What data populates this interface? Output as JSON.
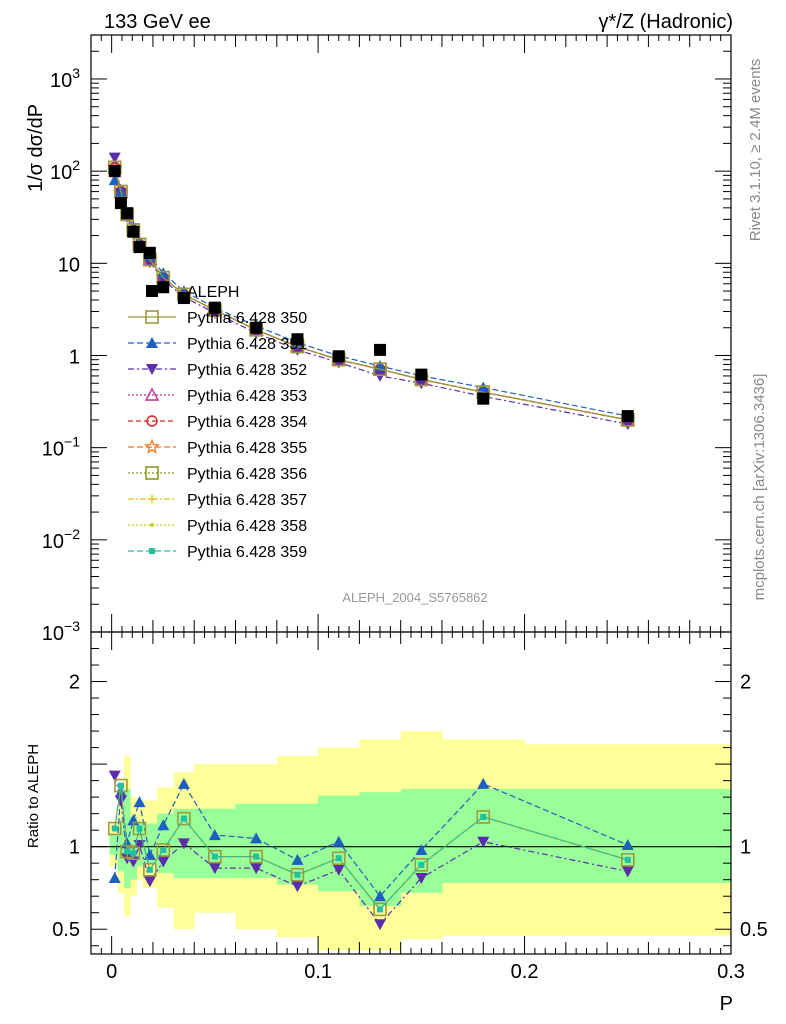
{
  "header": {
    "left": "133 GeV ee",
    "right": "γ*/Z (Hadronic)"
  },
  "side_labels": {
    "rivet": "Rivet 3.1.10, ≥ 2.4M events",
    "mcplots": "mcplots.cern.ch [arXiv:1306.3436]"
  },
  "analysis_label": "ALEPH_2004_S5765862",
  "colors": {
    "data": "#000000",
    "band_inner": "#99ff99",
    "band_outer": "#ffff99",
    "ratio_line": "#000000"
  },
  "chart_data": [
    {
      "type": "scatter",
      "title": "",
      "ylabel": "1/σ  dσ/dP",
      "xlabel": "",
      "yscale": "log",
      "ylim": [
        0.001,
        3000
      ],
      "xlim": [
        -0.01,
        0.3
      ],
      "grid": false,
      "legend_position": "left",
      "x": [
        0.0015,
        0.0045,
        0.0075,
        0.0105,
        0.0135,
        0.0185,
        0.025,
        0.035,
        0.05,
        0.07,
        0.09,
        0.11,
        0.13,
        0.15,
        0.18,
        0.25
      ],
      "yticks": [
        {
          "label": "10^3",
          "v": 1000
        },
        {
          "label": "10^2",
          "v": 100
        },
        {
          "label": "10",
          "v": 10
        },
        {
          "label": "1",
          "v": 1
        },
        {
          "label": "10^-1",
          "v": 0.1
        },
        {
          "label": "10^-2",
          "v": 0.01
        },
        {
          "label": "10^-3",
          "v": 0.001
        }
      ],
      "series": [
        {
          "name": "ALEPH",
          "color": "#000000",
          "marker": "square-filled",
          "dash": "none",
          "values": [
            100,
            45,
            35,
            22,
            15,
            13,
            5.5,
            4.2,
            3.3,
            2.0,
            1.5,
            0.98,
            1.15,
            0.62,
            0.34,
            0.22
          ]
        },
        {
          "name": "Pythia 6.428 350",
          "color": "#a09a3a",
          "marker": "square-open",
          "dash": "solid",
          "values": [
            110,
            60,
            34,
            23,
            16,
            11,
            7.0,
            4.6,
            3.1,
            1.9,
            1.25,
            0.9,
            0.71,
            0.55,
            0.4,
            0.2
          ]
        },
        {
          "name": "Pythia 6.428 351",
          "color": "#1f5fbf",
          "marker": "triangle-up-filled",
          "dash": "6,3",
          "values": [
            80,
            60,
            35,
            25,
            17,
            12,
            7.8,
            5.0,
            3.3,
            2.1,
            1.38,
            0.99,
            0.77,
            0.6,
            0.45,
            0.22
          ]
        },
        {
          "name": "Pythia 6.428 352",
          "color": "#5b2da8",
          "marker": "triangle-down-filled",
          "dash": "6,3,2,3",
          "values": [
            140,
            58,
            32,
            22,
            15,
            10.3,
            6.6,
            4.3,
            2.9,
            1.75,
            1.15,
            0.84,
            0.6,
            0.5,
            0.36,
            0.18
          ]
        },
        {
          "name": "Pythia 6.428 353",
          "color": "#c03090",
          "marker": "triangle-up-open",
          "dash": "2,2",
          "values": [
            110,
            60,
            34,
            23,
            16,
            11,
            7.0,
            4.6,
            3.1,
            1.9,
            1.25,
            0.9,
            0.71,
            0.55,
            0.4,
            0.2
          ]
        },
        {
          "name": "Pythia 6.428 354",
          "color": "#e02020",
          "marker": "circle-open",
          "dash": "5,3",
          "values": [
            110,
            60,
            34,
            23,
            16,
            11,
            7.0,
            4.6,
            3.1,
            1.9,
            1.25,
            0.9,
            0.71,
            0.55,
            0.4,
            0.2
          ]
        },
        {
          "name": "Pythia 6.428 355",
          "color": "#f07820",
          "marker": "star-open",
          "dash": "6,3",
          "values": [
            110,
            60,
            34,
            23,
            16,
            11,
            7.0,
            4.6,
            3.1,
            1.9,
            1.25,
            0.9,
            0.71,
            0.55,
            0.4,
            0.2
          ]
        },
        {
          "name": "Pythia 6.428 356",
          "color": "#8a9a20",
          "marker": "square-open",
          "dash": "2,2",
          "values": [
            110,
            60,
            34,
            23,
            16,
            11,
            7.0,
            4.6,
            3.1,
            1.9,
            1.25,
            0.9,
            0.71,
            0.55,
            0.4,
            0.2
          ]
        },
        {
          "name": "Pythia 6.428 357",
          "color": "#e6c020",
          "marker": "plus",
          "dash": "6,2,2,2",
          "values": [
            110,
            60,
            34,
            23,
            16,
            11,
            7.0,
            4.6,
            3.1,
            1.9,
            1.25,
            0.9,
            0.71,
            0.55,
            0.4,
            0.2
          ]
        },
        {
          "name": "Pythia 6.428 358",
          "color": "#c8d020",
          "marker": "dot",
          "dash": "2,2",
          "values": [
            110,
            60,
            34,
            23,
            16,
            11,
            7.0,
            4.6,
            3.1,
            1.9,
            1.25,
            0.9,
            0.71,
            0.55,
            0.4,
            0.2
          ]
        },
        {
          "name": "Pythia 6.428 359",
          "color": "#20c0a0",
          "marker": "square-small-filled",
          "dash": "6,3",
          "values": [
            110,
            60,
            34,
            23,
            16,
            11,
            7.0,
            4.6,
            3.1,
            1.9,
            1.25,
            0.9,
            0.71,
            0.55,
            0.4,
            0.2
          ]
        }
      ]
    },
    {
      "type": "scatter",
      "title": "",
      "ylabel": "Ratio to ALEPH",
      "xlabel": "P",
      "ylim": [
        0.35,
        2.3
      ],
      "xlim": [
        -0.01,
        0.3
      ],
      "grid": false,
      "reference_line": 1,
      "yticks": [
        {
          "label": "0.5",
          "v": 0.5
        },
        {
          "label": "1",
          "v": 1
        },
        {
          "label": "2",
          "v": 2
        }
      ],
      "xticks": [
        {
          "label": "0",
          "v": 0
        },
        {
          "label": "0.1",
          "v": 0.1
        },
        {
          "label": "0.2",
          "v": 0.2
        },
        {
          "label": "0.3",
          "v": 0.3
        }
      ],
      "bands": {
        "edges": [
          -0.001,
          0.003,
          0.006,
          0.009,
          0.012,
          0.015,
          0.022,
          0.03,
          0.04,
          0.06,
          0.08,
          0.1,
          0.12,
          0.14,
          0.16,
          0.2,
          0.3
        ],
        "inner_low": [
          0.95,
          0.85,
          0.75,
          0.8,
          0.88,
          0.9,
          0.84,
          0.81,
          0.81,
          0.81,
          0.77,
          0.73,
          0.64,
          0.72,
          0.78,
          0.78
        ],
        "inner_high": [
          1.07,
          1.17,
          1.35,
          1.18,
          1.14,
          1.14,
          1.2,
          1.23,
          1.23,
          1.26,
          1.26,
          1.31,
          1.33,
          1.35,
          1.35,
          1.35
        ],
        "outer_low": [
          0.88,
          0.72,
          0.58,
          0.7,
          0.8,
          0.75,
          0.63,
          0.5,
          0.6,
          0.5,
          0.45,
          0.37,
          0.37,
          0.44,
          0.46,
          0.46
        ],
        "outer_high": [
          1.15,
          1.3,
          1.55,
          1.3,
          1.25,
          1.28,
          1.36,
          1.45,
          1.5,
          1.5,
          1.55,
          1.6,
          1.65,
          1.7,
          1.65,
          1.62
        ]
      },
      "series": [
        {
          "name": "Pythia 6.428 351",
          "color": "#1f5fbf",
          "marker": "triangle-up-filled",
          "dash": "6,3",
          "values": [
            0.81,
            1.33,
            1.02,
            1.16,
            1.27,
            0.95,
            1.13,
            1.38,
            1.07,
            1.05,
            0.92,
            1.03,
            0.7,
            0.98,
            1.38,
            1.01
          ]
        },
        {
          "name": "Pythia 6.428 352",
          "color": "#5b2da8",
          "marker": "triangle-down-filled",
          "dash": "6,3,2,3",
          "values": [
            1.43,
            1.28,
            0.93,
            0.91,
            1.01,
            0.79,
            0.91,
            1.02,
            0.87,
            0.87,
            0.76,
            0.86,
            0.53,
            0.81,
            1.03,
            0.85
          ]
        },
        {
          "name": "Pythia 6.428 350",
          "color": "#a09a3a",
          "marker": "square-open",
          "dash": "solid",
          "values": [
            1.11,
            1.37,
            0.97,
            0.96,
            1.11,
            0.86,
            0.98,
            1.17,
            0.94,
            0.94,
            0.83,
            0.93,
            0.62,
            0.89,
            1.18,
            0.92
          ]
        },
        {
          "name": "Pythia 6.428 359",
          "color": "#20c0a0",
          "marker": "square-small-filled",
          "dash": "6,3",
          "values": [
            1.11,
            1.37,
            0.97,
            0.96,
            1.11,
            0.86,
            0.98,
            1.17,
            0.94,
            0.94,
            0.83,
            0.93,
            0.62,
            0.89,
            1.18,
            0.92
          ]
        }
      ]
    }
  ]
}
